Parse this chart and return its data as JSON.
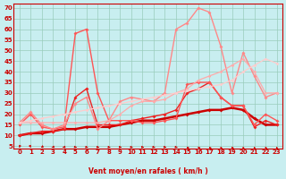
{
  "xlabel": "Vent moyen/en rafales ( km/h )",
  "background_color": "#c8eef0",
  "grid_color": "#99ccbb",
  "x_values": [
    0,
    1,
    2,
    3,
    4,
    5,
    6,
    7,
    8,
    9,
    10,
    11,
    12,
    13,
    14,
    15,
    16,
    17,
    18,
    19,
    20,
    21,
    22,
    23
  ],
  "yticks": [
    5,
    10,
    15,
    20,
    25,
    30,
    35,
    40,
    45,
    50,
    55,
    60,
    65,
    70
  ],
  "ylim": [
    4,
    72
  ],
  "xlim": [
    -0.5,
    23.5
  ],
  "series": [
    {
      "color": "#cc0000",
      "linewidth": 1.8,
      "markersize": 2.0,
      "values": [
        10,
        11,
        11,
        12,
        13,
        13,
        14,
        14,
        14,
        15,
        16,
        17,
        17,
        18,
        19,
        20,
        21,
        22,
        22,
        23,
        22,
        18,
        15,
        15
      ]
    },
    {
      "color": "#ee2222",
      "linewidth": 1.0,
      "markersize": 2.0,
      "values": [
        10,
        11,
        12,
        12,
        13,
        28,
        32,
        15,
        15,
        15,
        17,
        18,
        19,
        20,
        22,
        30,
        32,
        35,
        28,
        24,
        24,
        14,
        17,
        15
      ]
    },
    {
      "color": "#ff5555",
      "linewidth": 1.0,
      "markersize": 2.0,
      "values": [
        15,
        20,
        14,
        13,
        14,
        58,
        60,
        30,
        17,
        17,
        17,
        16,
        16,
        17,
        18,
        34,
        35,
        35,
        28,
        24,
        24,
        15,
        20,
        17
      ]
    },
    {
      "color": "#ff8888",
      "linewidth": 1.0,
      "markersize": 2.0,
      "values": [
        16,
        21,
        15,
        13,
        15,
        25,
        28,
        13,
        17,
        26,
        28,
        27,
        26,
        30,
        60,
        63,
        70,
        68,
        52,
        30,
        49,
        38,
        28,
        30
      ]
    },
    {
      "color": "#ffaaaa",
      "linewidth": 0.9,
      "markersize": 1.8,
      "values": [
        16,
        16,
        16,
        16,
        16,
        16,
        16,
        16,
        17,
        20,
        24,
        26,
        26,
        27,
        30,
        32,
        36,
        38,
        40,
        43,
        46,
        40,
        30,
        30
      ]
    },
    {
      "color": "#ffcccc",
      "linewidth": 0.9,
      "markersize": 1.8,
      "values": [
        16,
        17,
        18,
        19,
        20,
        21,
        22,
        23,
        24,
        25,
        26,
        27,
        28,
        29,
        30,
        31,
        32,
        33,
        34,
        36,
        40,
        43,
        46,
        44
      ]
    }
  ],
  "arrow_angles": [
    350,
    10,
    330,
    310,
    300,
    60,
    70,
    70,
    80,
    80,
    80,
    70,
    65,
    65,
    70,
    200,
    200,
    195,
    190,
    195,
    185,
    185,
    190,
    185
  ],
  "arrow_color": "#cc0000",
  "tick_color": "#cc0000",
  "label_color": "#cc0000",
  "tick_fontsize": 5.0,
  "xlabel_fontsize": 5.5
}
